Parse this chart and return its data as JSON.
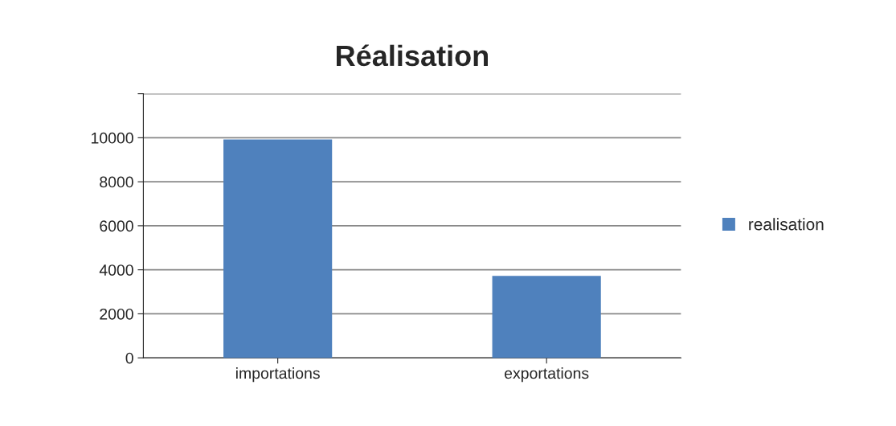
{
  "chart_data": {
    "type": "bar",
    "title": "Réalisation",
    "categories": [
      "importations",
      "exportations"
    ],
    "series": [
      {
        "name": "realisation",
        "color": "#4f81bd",
        "values": [
          9900,
          3700
        ]
      }
    ],
    "ylim": [
      0,
      12000
    ],
    "yticks": [
      0,
      2000,
      4000,
      6000,
      8000,
      10000,
      {
        "value": 12000,
        "label": null
      }
    ],
    "grid": "y",
    "legend": "right"
  }
}
